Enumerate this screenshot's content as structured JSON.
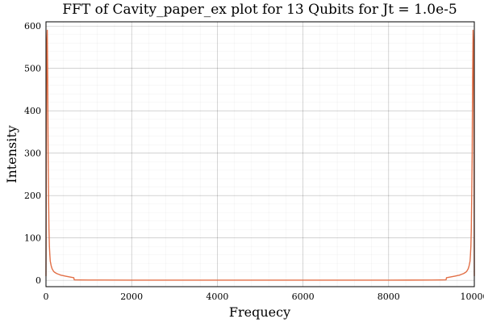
{
  "chart_data": {
    "type": "line",
    "title": "FFT of Cavity_paper_ex plot for 13 Qubits for Jt = 1.0e-5",
    "xlabel": "Frequecy",
    "ylabel": "Intensity",
    "xlim": [
      0,
      10000
    ],
    "ylim": [
      -15,
      610
    ],
    "xticks": [
      0,
      2000,
      4000,
      6000,
      8000,
      10000
    ],
    "yticks": [
      0,
      100,
      200,
      300,
      400,
      500,
      600
    ],
    "grid": true,
    "minor_grid": true,
    "legend": "none",
    "series": [
      {
        "color": "#e26f46",
        "x": [
          0,
          10,
          20,
          30,
          40,
          50,
          60,
          70,
          80,
          90,
          100,
          120,
          140,
          160,
          180,
          200,
          250,
          300,
          350,
          400,
          450,
          500,
          550,
          600,
          650,
          660,
          800,
          1000,
          2000,
          3000,
          4000,
          5000,
          6000,
          7000,
          8000,
          9000,
          9200,
          9340,
          9350,
          9400,
          9450,
          9500,
          9550,
          9600,
          9650,
          9700,
          9750,
          9800,
          9820,
          9840,
          9860,
          9880,
          9900,
          9910,
          9920,
          9930,
          9940,
          9950,
          9960,
          9970,
          9980,
          9990,
          10000
        ],
        "y": [
          10,
          400,
          560,
          590,
          480,
          300,
          200,
          120,
          80,
          60,
          45,
          35,
          28,
          24,
          21,
          19,
          16,
          14,
          12,
          11,
          10,
          9,
          8,
          7,
          6,
          1,
          0.8,
          0.6,
          0.4,
          0.3,
          0.3,
          0.3,
          0.3,
          0.3,
          0.4,
          0.6,
          0.8,
          1,
          6,
          7,
          8,
          9,
          10,
          11,
          12,
          14,
          16,
          19,
          21,
          24,
          28,
          35,
          45,
          60,
          80,
          120,
          200,
          300,
          480,
          590,
          560,
          400,
          10
        ]
      }
    ]
  }
}
